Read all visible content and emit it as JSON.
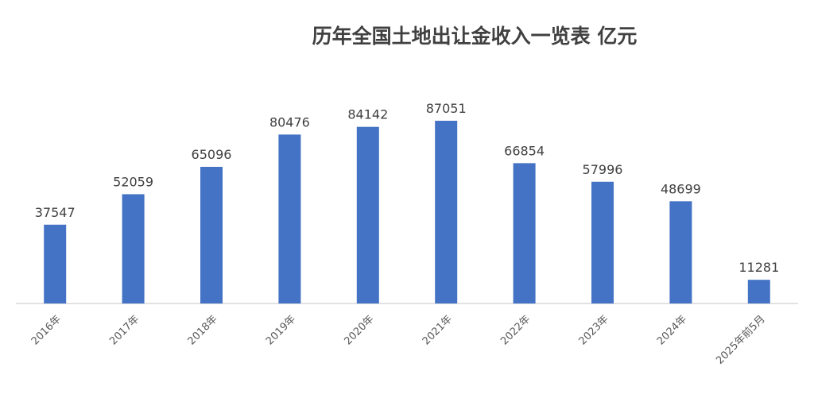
{
  "chart_data": {
    "type": "bar",
    "title": "历年全国土地出让金收入一览表  亿元",
    "xlabel": "",
    "ylabel": "",
    "categories": [
      "2016年",
      "2017年",
      "2018年",
      "2019年",
      "2020年",
      "2021年",
      "2022年",
      "2023年",
      "2024年",
      "2025年前5月"
    ],
    "values": [
      37547,
      52059,
      65096,
      80476,
      84142,
      87051,
      66854,
      57996,
      48699,
      11281
    ],
    "ylim": [
      0,
      100000
    ],
    "grid": false,
    "legend": "none",
    "bar_color": "#4472C4"
  }
}
